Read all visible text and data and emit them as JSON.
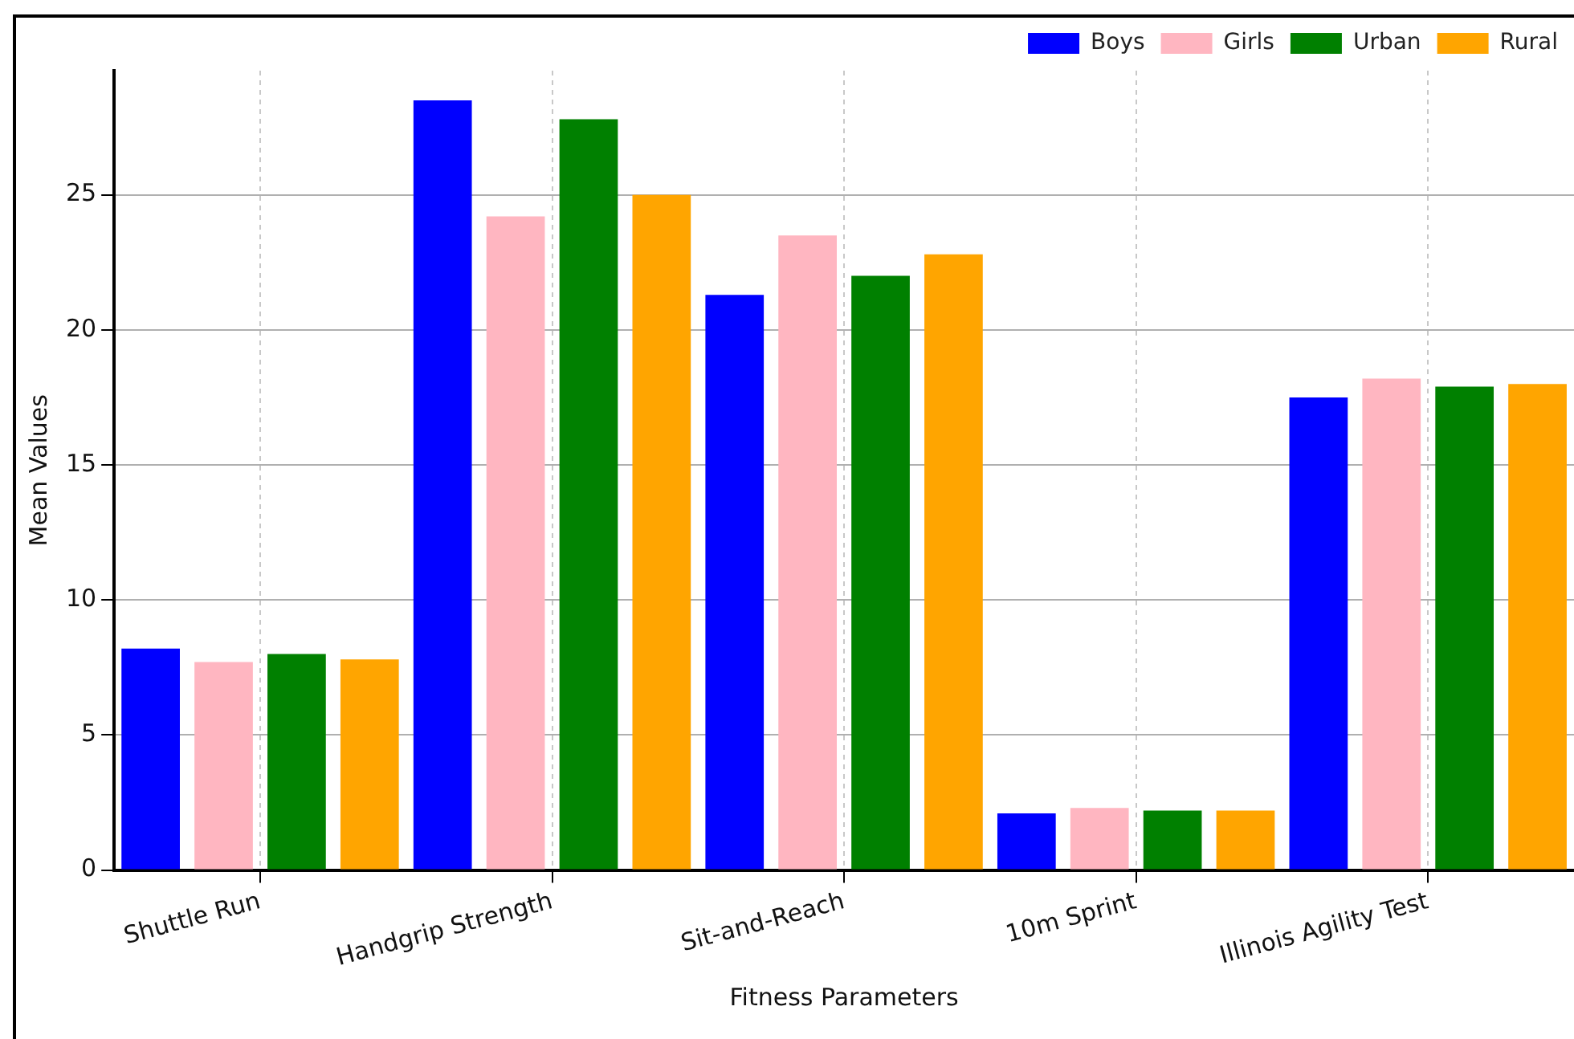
{
  "chart_data": {
    "type": "bar",
    "xlabel": "Fitness Parameters",
    "ylabel": "Mean Values",
    "categories": [
      "Shuttle Run",
      "Handgrip Strength",
      "Sit-and-Reach",
      "10m Sprint",
      "Illinois Agility Test"
    ],
    "series": [
      {
        "name": "Boys",
        "color": "#0000ff",
        "values": [
          8.2,
          28.5,
          21.3,
          2.1,
          17.5
        ]
      },
      {
        "name": "Girls",
        "color": "#ffb6c1",
        "values": [
          7.7,
          24.2,
          23.5,
          2.3,
          18.2
        ]
      },
      {
        "name": "Urban",
        "color": "#008000",
        "values": [
          8.0,
          27.8,
          22.0,
          2.2,
          17.9
        ]
      },
      {
        "name": "Rural",
        "color": "#ffa500",
        "values": [
          7.8,
          25.0,
          22.8,
          2.2,
          18.0
        ]
      }
    ],
    "ylim": [
      0,
      29.6
    ],
    "yticks": [
      0,
      5,
      10,
      15,
      20,
      25
    ],
    "grid": true,
    "legend": "top right"
  }
}
